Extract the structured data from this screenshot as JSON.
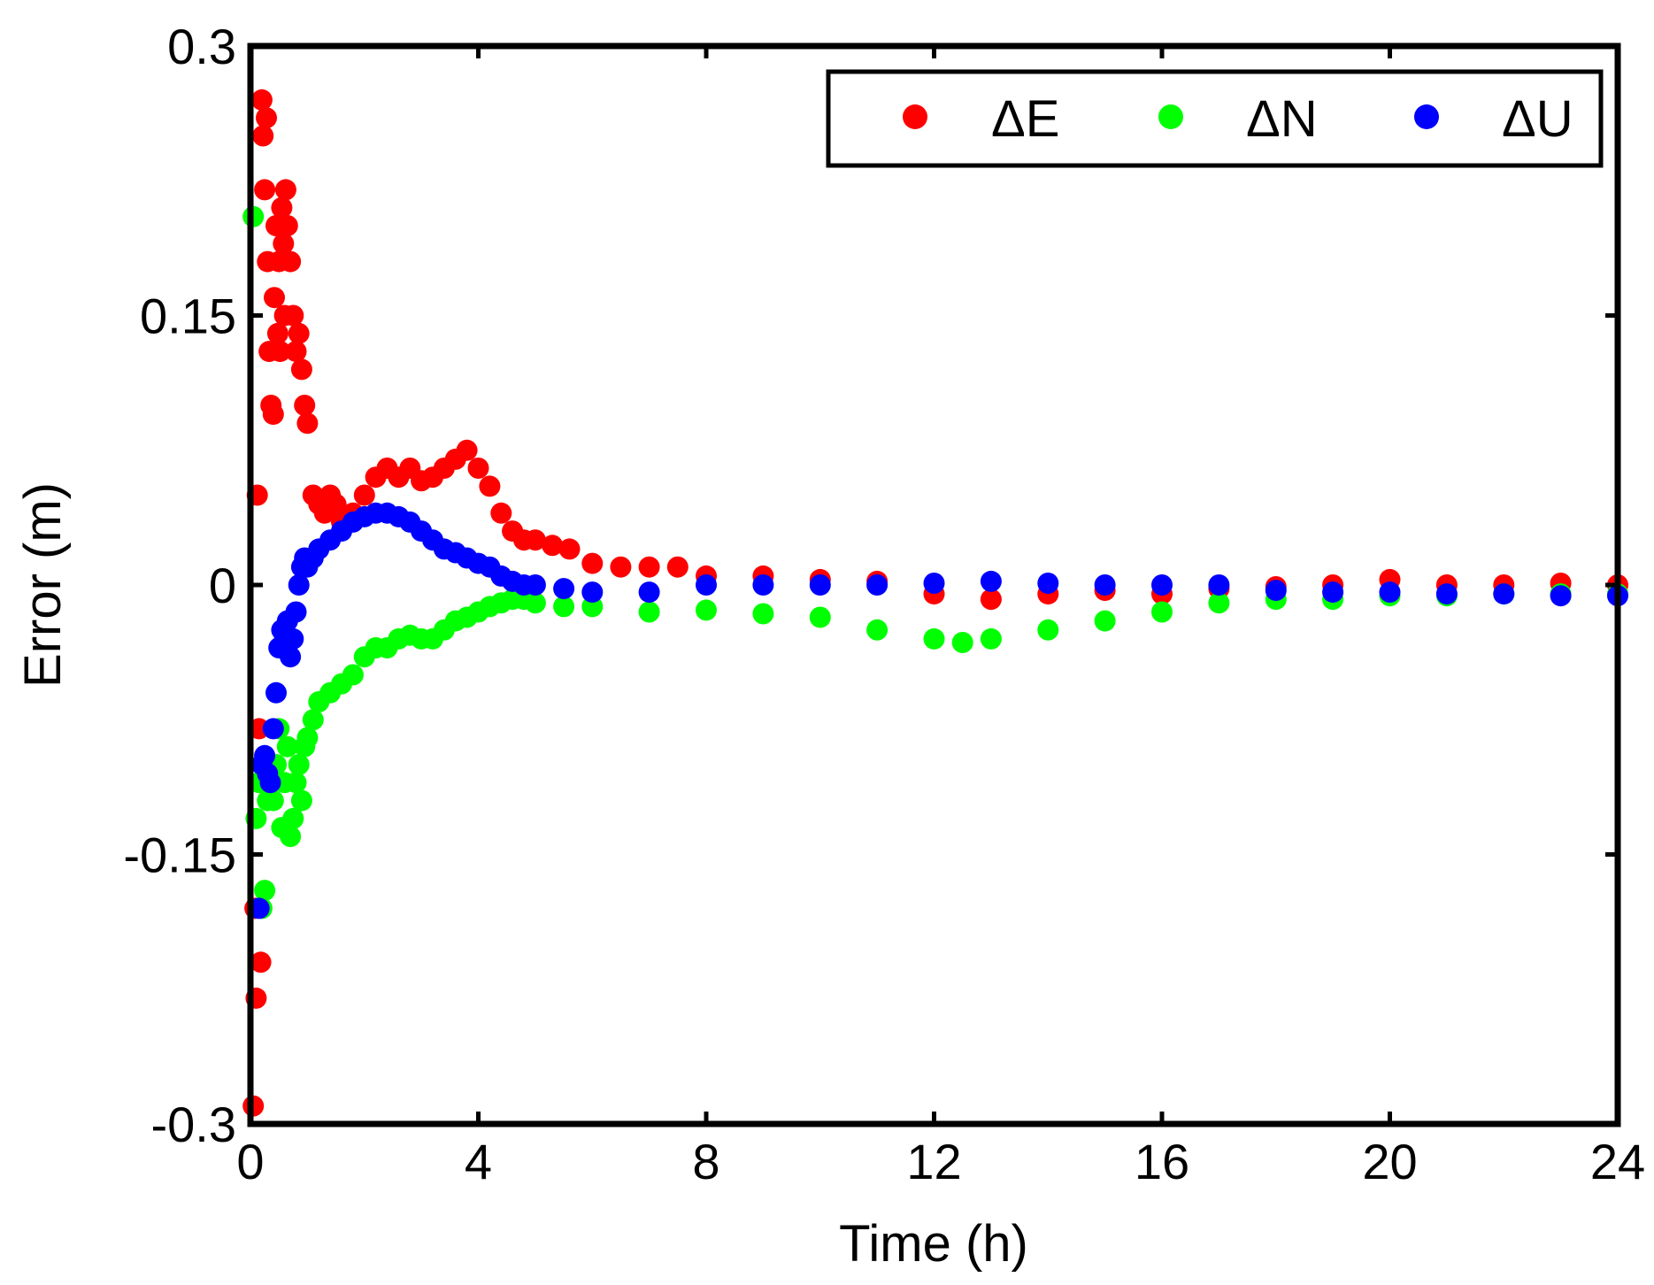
{
  "chart_data": {
    "type": "scatter",
    "title": "",
    "xlabel": "Time (h)",
    "ylabel": "Error (m)",
    "xlim": [
      0,
      24
    ],
    "ylim": [
      -0.3,
      0.3
    ],
    "xticks": [
      0,
      4,
      8,
      12,
      16,
      20,
      24
    ],
    "xtick_labels": [
      "0",
      "4",
      "8",
      "12",
      "16",
      "20",
      "24"
    ],
    "yticks": [
      -0.3,
      -0.15,
      0,
      0.15,
      0.3
    ],
    "ytick_labels": [
      "-0.3",
      "-0.15",
      "0",
      "0.15",
      "0.3"
    ],
    "grid": false,
    "legend": "top-right",
    "series": [
      {
        "name": "ΔE",
        "color": "#ff0000",
        "x": [
          0.05,
          0.08,
          0.1,
          0.12,
          0.15,
          0.18,
          0.2,
          0.22,
          0.25,
          0.28,
          0.3,
          0.33,
          0.36,
          0.4,
          0.42,
          0.45,
          0.48,
          0.5,
          0.52,
          0.55,
          0.58,
          0.6,
          0.62,
          0.65,
          0.7,
          0.75,
          0.8,
          0.85,
          0.9,
          0.95,
          1.0,
          1.1,
          1.2,
          1.3,
          1.4,
          1.5,
          1.6,
          1.8,
          2.0,
          2.2,
          2.4,
          2.6,
          2.8,
          3.0,
          3.2,
          3.4,
          3.6,
          3.8,
          4.0,
          4.2,
          4.4,
          4.6,
          4.8,
          5.0,
          5.3,
          5.6,
          6.0,
          6.5,
          7.0,
          7.5,
          8.0,
          9.0,
          10.0,
          11.0,
          12.0,
          13.0,
          14.0,
          15.0,
          16.0,
          17.0,
          18.0,
          19.0,
          20.0,
          21.0,
          22.0,
          23.0,
          24.0
        ],
        "values": [
          -0.29,
          -0.18,
          -0.23,
          0.05,
          -0.08,
          -0.21,
          0.27,
          0.25,
          0.22,
          0.26,
          0.18,
          0.13,
          0.1,
          0.095,
          0.16,
          0.2,
          0.14,
          0.18,
          0.13,
          0.21,
          0.19,
          0.15,
          0.22,
          0.2,
          0.18,
          0.15,
          0.13,
          0.14,
          0.12,
          0.1,
          0.09,
          0.05,
          0.045,
          0.04,
          0.05,
          0.045,
          0.035,
          0.04,
          0.05,
          0.06,
          0.065,
          0.06,
          0.065,
          0.058,
          0.06,
          0.065,
          0.07,
          0.075,
          0.065,
          0.055,
          0.04,
          0.03,
          0.025,
          0.025,
          0.022,
          0.02,
          0.012,
          0.01,
          0.01,
          0.01,
          0.005,
          0.005,
          0.003,
          0.002,
          -0.005,
          -0.008,
          -0.005,
          -0.003,
          -0.005,
          -0.002,
          -0.001,
          0.0,
          0.003,
          0.0,
          0.0,
          0.001,
          0.0
        ]
      },
      {
        "name": "ΔN",
        "color": "#00ff00",
        "x": [
          0.05,
          0.1,
          0.15,
          0.2,
          0.25,
          0.3,
          0.35,
          0.4,
          0.45,
          0.5,
          0.55,
          0.6,
          0.65,
          0.7,
          0.75,
          0.8,
          0.85,
          0.9,
          0.95,
          1.0,
          1.1,
          1.2,
          1.4,
          1.6,
          1.8,
          2.0,
          2.2,
          2.4,
          2.6,
          2.8,
          3.0,
          3.2,
          3.4,
          3.6,
          3.8,
          4.0,
          4.2,
          4.4,
          4.6,
          4.8,
          5.0,
          5.5,
          6.0,
          7.0,
          8.0,
          9.0,
          10.0,
          11.0,
          12.0,
          12.5,
          13.0,
          14.0,
          15.0,
          16.0,
          17.0,
          18.0,
          19.0,
          20.0,
          21.0,
          22.0,
          23.0,
          24.0
        ],
        "values": [
          0.205,
          -0.13,
          -0.11,
          -0.18,
          -0.17,
          -0.12,
          -0.1,
          -0.12,
          -0.1,
          -0.08,
          -0.135,
          -0.11,
          -0.09,
          -0.14,
          -0.13,
          -0.11,
          -0.1,
          -0.12,
          -0.09,
          -0.085,
          -0.075,
          -0.065,
          -0.06,
          -0.055,
          -0.05,
          -0.04,
          -0.035,
          -0.035,
          -0.03,
          -0.028,
          -0.03,
          -0.03,
          -0.025,
          -0.02,
          -0.018,
          -0.015,
          -0.012,
          -0.01,
          -0.008,
          -0.008,
          -0.01,
          -0.012,
          -0.012,
          -0.015,
          -0.014,
          -0.016,
          -0.018,
          -0.025,
          -0.03,
          -0.032,
          -0.03,
          -0.025,
          -0.02,
          -0.015,
          -0.01,
          -0.008,
          -0.008,
          -0.006,
          -0.006,
          -0.005,
          -0.005,
          -0.005
        ]
      },
      {
        "name": "ΔU",
        "color": "#0000ff",
        "x": [
          0.15,
          0.2,
          0.25,
          0.3,
          0.35,
          0.4,
          0.45,
          0.5,
          0.55,
          0.6,
          0.65,
          0.7,
          0.75,
          0.8,
          0.85,
          0.9,
          0.95,
          1.0,
          1.1,
          1.2,
          1.4,
          1.6,
          1.8,
          2.0,
          2.2,
          2.4,
          2.6,
          2.8,
          3.0,
          3.2,
          3.4,
          3.6,
          3.8,
          4.0,
          4.2,
          4.4,
          4.6,
          4.8,
          5.0,
          5.5,
          6.0,
          7.0,
          8.0,
          9.0,
          10.0,
          11.0,
          12.0,
          13.0,
          14.0,
          15.0,
          16.0,
          17.0,
          18.0,
          19.0,
          20.0,
          21.0,
          22.0,
          23.0,
          24.0
        ],
        "values": [
          -0.18,
          -0.1,
          -0.095,
          -0.105,
          -0.11,
          -0.08,
          -0.06,
          -0.035,
          -0.025,
          -0.03,
          -0.02,
          -0.04,
          -0.03,
          -0.015,
          0.0,
          0.01,
          0.015,
          0.01,
          0.015,
          0.02,
          0.025,
          0.03,
          0.035,
          0.038,
          0.04,
          0.04,
          0.038,
          0.035,
          0.03,
          0.025,
          0.02,
          0.018,
          0.015,
          0.012,
          0.01,
          0.005,
          0.002,
          0.0,
          0.0,
          -0.002,
          -0.004,
          -0.004,
          0.0,
          0.0,
          0.0,
          0.0,
          0.001,
          0.002,
          0.001,
          0.0,
          0.0,
          0.0,
          -0.003,
          -0.004,
          -0.004,
          -0.005,
          -0.005,
          -0.006,
          -0.006
        ]
      }
    ]
  }
}
